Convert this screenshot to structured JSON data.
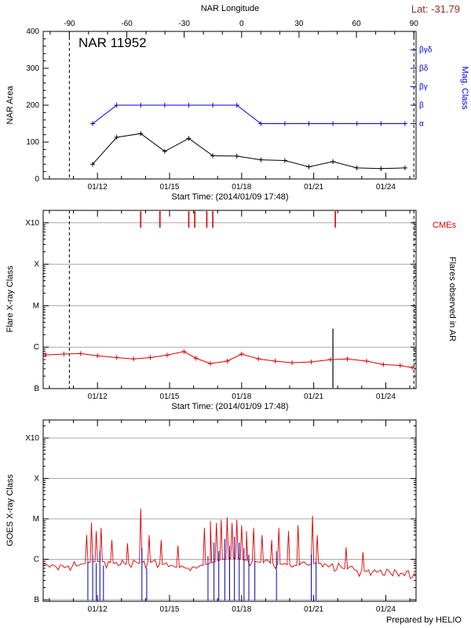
{
  "header": {
    "lat": "Lat: -31.79"
  },
  "footer": {
    "credit": "Prepared by HELIO"
  },
  "colors": {
    "blue": "#0000dd",
    "red": "#dd0000",
    "event_blue": "#0000bb",
    "grid": "#aaaaaa"
  },
  "chart_data": [
    {
      "type": "line",
      "title": "NAR 11952",
      "ylabel": "NAR Area",
      "ylabel_right": "Mag. Class",
      "top_axis_title": "NAR Longitude",
      "xlabel": "Start Time: (2014/01/09 17:48)",
      "xlim": [
        9.74,
        25.26
      ],
      "ylim": [
        0,
        400
      ],
      "y_ticks": [
        0,
        100,
        200,
        300,
        400
      ],
      "x_ticks": [
        {
          "label": "01/12",
          "t": 12
        },
        {
          "label": "01/15",
          "t": 15
        },
        {
          "label": "01/18",
          "t": 18
        },
        {
          "label": "01/21",
          "t": 21
        },
        {
          "label": "01/24",
          "t": 24
        }
      ],
      "longitude_ticks": [
        {
          "label": "-90",
          "t": 10.83
        },
        {
          "label": "-60",
          "t": 13.22
        },
        {
          "label": "-30",
          "t": 15.61
        },
        {
          "label": "0",
          "t": 18.0
        },
        {
          "label": "30",
          "t": 20.39
        },
        {
          "label": "60",
          "t": 22.78
        },
        {
          "label": "90",
          "t": 25.17
        }
      ],
      "longitude_minor_ts": [
        10.03,
        11.63,
        12.42,
        14.02,
        14.81,
        16.41,
        17.2,
        18.8,
        19.59,
        21.19,
        21.98,
        23.58,
        24.37
      ],
      "limb_crossings_t": [
        10.83,
        25.17
      ],
      "mag_levels": [
        {
          "label": "α",
          "y": 150
        },
        {
          "label": "β",
          "y": 200
        },
        {
          "label": "βγ",
          "y": 250
        },
        {
          "label": "βδ",
          "y": 300
        },
        {
          "label": "βγδ",
          "y": 350
        }
      ],
      "series": [
        {
          "name": "NAR Area",
          "color": "#000000",
          "marker": "+",
          "points": [
            [
              11.8,
              40
            ],
            [
              12.8,
              113
            ],
            [
              13.8,
              123
            ],
            [
              14.8,
              75
            ],
            [
              15.8,
              110
            ],
            [
              16.8,
              63
            ],
            [
              17.8,
              62
            ],
            [
              18.8,
              52
            ],
            [
              19.8,
              50
            ],
            [
              20.8,
              33
            ],
            [
              21.8,
              47
            ],
            [
              22.8,
              30
            ],
            [
              23.8,
              28
            ],
            [
              24.8,
              30
            ]
          ]
        },
        {
          "name": "Mag. Class",
          "color": "#0000dd",
          "marker": "+",
          "points": [
            [
              11.8,
              "α"
            ],
            [
              12.8,
              "β"
            ],
            [
              13.8,
              "β"
            ],
            [
              14.8,
              "β"
            ],
            [
              15.8,
              "β"
            ],
            [
              16.8,
              "β"
            ],
            [
              17.8,
              "β"
            ],
            [
              18.8,
              "α"
            ],
            [
              19.8,
              "α"
            ],
            [
              20.8,
              "α"
            ],
            [
              21.8,
              "α"
            ],
            [
              22.8,
              "α"
            ],
            [
              23.8,
              "α"
            ],
            [
              24.8,
              "α"
            ]
          ]
        }
      ]
    },
    {
      "type": "line",
      "ylabel": "Flare X-ray Class",
      "right_label": "Flares observed in AR",
      "cme_label": "CMEs",
      "xlabel": "Start Time: (2014/01/09 17:48)",
      "xlim": [
        9.74,
        25.26
      ],
      "y_decades": [
        {
          "label": "B",
          "exp": -7
        },
        {
          "label": "C",
          "exp": -6
        },
        {
          "label": "M",
          "exp": -5
        },
        {
          "label": "X",
          "exp": -4
        },
        {
          "label": "X10",
          "exp": -3
        }
      ],
      "x_ticks": [
        {
          "label": "01/12",
          "t": 12
        },
        {
          "label": "01/15",
          "t": 15
        },
        {
          "label": "01/18",
          "t": 18
        },
        {
          "label": "01/21",
          "t": 21
        },
        {
          "label": "01/24",
          "t": 24
        }
      ],
      "limb_crossings_t": [
        10.83,
        25.17
      ],
      "cme_times": [
        13.8,
        14.6,
        15.8,
        16.05,
        16.55,
        16.8,
        21.9
      ],
      "flare_line": {
        "t": 21.8,
        "peak_flux": 2.8e-06
      },
      "series": [
        {
          "name": "Flare X-ray history",
          "color": "#dd0000",
          "marker": "+",
          "points": [
            [
              9.85,
              6.5e-07
            ],
            [
              10.6,
              6.8e-07
            ],
            [
              11.3,
              7e-07
            ],
            [
              12.0,
              6.2e-07
            ],
            [
              12.8,
              5.6e-07
            ],
            [
              13.5,
              5.2e-07
            ],
            [
              14.2,
              5.6e-07
            ],
            [
              14.9,
              6.4e-07
            ],
            [
              15.6,
              7.8e-07
            ],
            [
              16.1,
              5.4e-07
            ],
            [
              16.7,
              4e-07
            ],
            [
              17.4,
              4.6e-07
            ],
            [
              18.0,
              6.8e-07
            ],
            [
              18.7,
              5.2e-07
            ],
            [
              19.4,
              4.6e-07
            ],
            [
              20.1,
              4.2e-07
            ],
            [
              20.9,
              4.4e-07
            ],
            [
              21.7,
              5e-07
            ],
            [
              22.4,
              5.2e-07
            ],
            [
              23.2,
              4.6e-07
            ],
            [
              23.9,
              3.8e-07
            ],
            [
              24.6,
              3.6e-07
            ],
            [
              25.1,
              3.2e-07
            ]
          ]
        }
      ]
    },
    {
      "type": "line",
      "ylabel": "GOES X-ray Class",
      "xlim": [
        9.74,
        25.26
      ],
      "y_decades": [
        {
          "label": "B",
          "exp": -7
        },
        {
          "label": "C",
          "exp": -6
        },
        {
          "label": "M",
          "exp": -5
        },
        {
          "label": "X",
          "exp": -4
        },
        {
          "label": "X10",
          "exp": -3
        }
      ],
      "x_ticks": [
        {
          "label": "01/12",
          "t": 12
        },
        {
          "label": "01/15",
          "t": 15
        },
        {
          "label": "01/18",
          "t": 18
        },
        {
          "label": "01/21",
          "t": 21
        },
        {
          "label": "01/24",
          "t": 24
        }
      ],
      "baseline_points": [
        [
          9.74,
          8e-07
        ],
        [
          10.2,
          7e-07
        ],
        [
          10.7,
          6.5e-07
        ],
        [
          11.2,
          7e-07
        ],
        [
          11.7,
          8.5e-07
        ],
        [
          12.2,
          9e-07
        ],
        [
          12.7,
          8e-07
        ],
        [
          13.2,
          7.5e-07
        ],
        [
          13.7,
          8e-07
        ],
        [
          14.2,
          8.5e-07
        ],
        [
          14.7,
          7.5e-07
        ],
        [
          15.2,
          6.5e-07
        ],
        [
          15.7,
          6e-07
        ],
        [
          16.2,
          6.5e-07
        ],
        [
          16.7,
          8e-07
        ],
        [
          17.2,
          1e-06
        ],
        [
          17.7,
          1.05e-06
        ],
        [
          18.2,
          9.5e-07
        ],
        [
          18.7,
          8.5e-07
        ],
        [
          19.2,
          8e-07
        ],
        [
          19.7,
          7.5e-07
        ],
        [
          20.2,
          7e-07
        ],
        [
          20.7,
          7.5e-07
        ],
        [
          21.2,
          8e-07
        ],
        [
          21.7,
          7e-07
        ],
        [
          22.2,
          6e-07
        ],
        [
          22.7,
          5.5e-07
        ],
        [
          23.2,
          5e-07
        ],
        [
          23.7,
          5e-07
        ],
        [
          24.2,
          4.5e-07
        ],
        [
          24.7,
          4.5e-07
        ],
        [
          25.26,
          4e-07
        ]
      ],
      "red_spikes": [
        [
          11.55,
          4e-06
        ],
        [
          11.75,
          8e-06
        ],
        [
          11.95,
          5e-06
        ],
        [
          12.15,
          6e-06
        ],
        [
          12.6,
          3e-06
        ],
        [
          13.25,
          2.5e-06
        ],
        [
          13.8,
          1.8e-05
        ],
        [
          14.15,
          4e-06
        ],
        [
          14.65,
          3e-06
        ],
        [
          15.35,
          2.2e-06
        ],
        [
          16.45,
          6e-06
        ],
        [
          16.7,
          9e-06
        ],
        [
          16.95,
          8e-06
        ],
        [
          17.15,
          9.5e-06
        ],
        [
          17.4,
          1.1e-05
        ],
        [
          17.6,
          8e-06
        ],
        [
          17.8,
          9.5e-06
        ],
        [
          18.0,
          7e-06
        ],
        [
          18.2,
          5e-06
        ],
        [
          18.5,
          6e-06
        ],
        [
          18.85,
          4e-06
        ],
        [
          19.25,
          3e-06
        ],
        [
          19.55,
          6e-06
        ],
        [
          19.95,
          5e-06
        ],
        [
          20.35,
          7e-06
        ],
        [
          20.95,
          1.2e-05
        ],
        [
          21.15,
          4e-06
        ],
        [
          22.35,
          2e-06
        ],
        [
          23.05,
          1.5e-06
        ]
      ],
      "blue_events": [
        [
          11.6,
          9e-07
        ],
        [
          11.8,
          1.3e-06
        ],
        [
          11.95,
          8e-07
        ],
        [
          12.1,
          1.6e-06
        ],
        [
          12.25,
          7e-07
        ],
        [
          13.85,
          1.9e-06
        ],
        [
          14.05,
          6e-07
        ],
        [
          16.6,
          1.2e-06
        ],
        [
          16.85,
          2.6e-06
        ],
        [
          17.05,
          1.6e-06
        ],
        [
          17.3,
          3.2e-06
        ],
        [
          17.5,
          2.2e-06
        ],
        [
          17.7,
          3.6e-06
        ],
        [
          17.9,
          2.6e-06
        ],
        [
          18.1,
          1.9e-06
        ],
        [
          18.3,
          1.3e-06
        ],
        [
          18.55,
          9e-07
        ],
        [
          19.45,
          1.6e-06
        ],
        [
          20.9,
          1.3e-06
        ],
        [
          21.1,
          9e-07
        ]
      ]
    }
  ]
}
